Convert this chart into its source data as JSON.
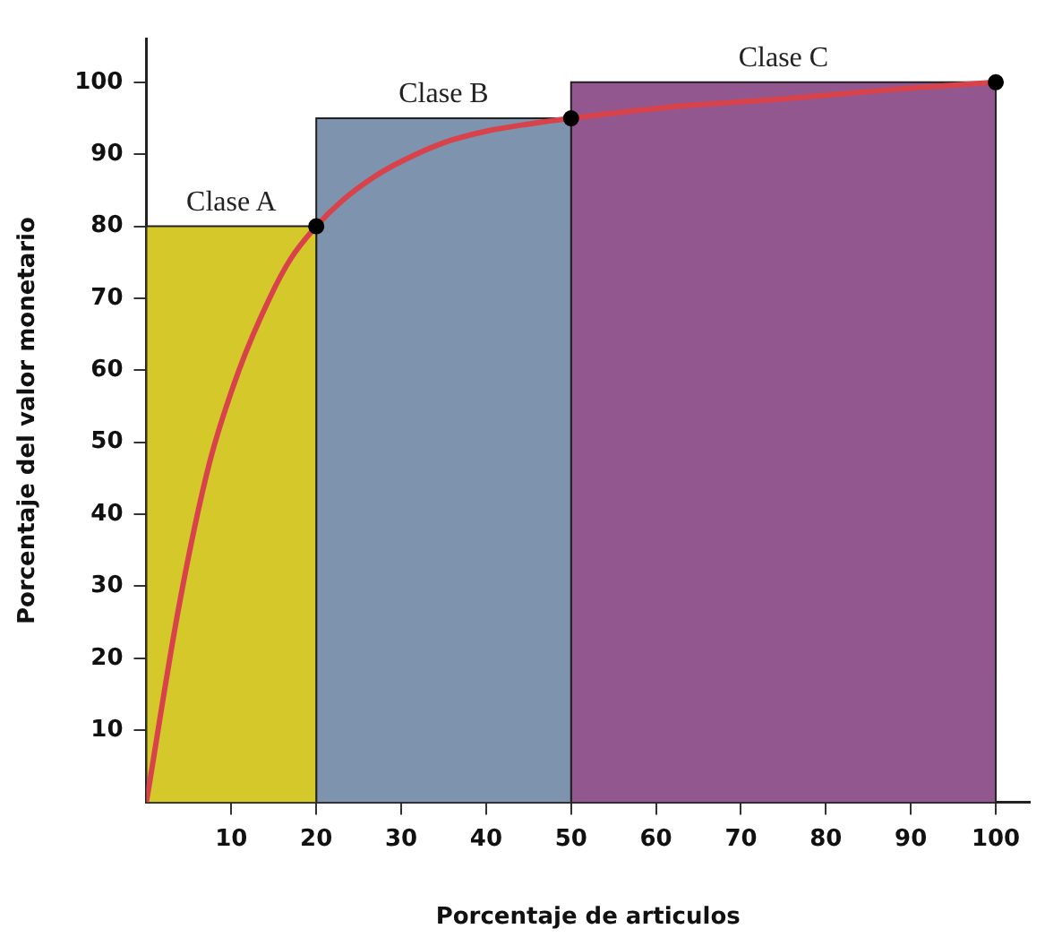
{
  "chart_data": {
    "type": "histogram",
    "xlabel": "Porcentaje de articulos",
    "ylabel": "Porcentaje del valor monetario",
    "bins": [
      0,
      20,
      50,
      100
    ],
    "values": [
      80,
      95,
      100
    ],
    "colors": [
      "#d4c82a",
      "#7d93ae",
      "#935790"
    ],
    "series": [
      {
        "type": "line",
        "color": "#d8434b",
        "marker": "none",
        "x": [
          0,
          3.8,
          7.4,
          10.9,
          14.5,
          17,
          20,
          23,
          27,
          30,
          35,
          40,
          45,
          50,
          62,
          75.2,
          88,
          100
        ],
        "values": [
          0,
          27,
          47,
          60,
          70,
          75.5,
          80,
          83.5,
          87,
          89,
          91.6,
          93.2,
          94.2,
          95,
          96.6,
          97.7,
          99,
          100
        ]
      },
      {
        "type": "scatter",
        "color": "#000000",
        "marker": "circle",
        "x": [
          20,
          50,
          100
        ],
        "values": [
          80,
          95,
          100
        ]
      }
    ],
    "annotations": [
      {
        "text": "Clase A",
        "x": 10,
        "y": 80
      },
      {
        "text": "Clase B",
        "x": 35,
        "y": 95
      },
      {
        "text": "Clase C",
        "x": 75,
        "y": 100
      }
    ],
    "xlim": [
      0,
      104
    ],
    "ylim": [
      0,
      106
    ],
    "xticks": [
      10,
      20,
      30,
      40,
      50,
      60,
      70,
      80,
      90,
      100
    ],
    "yticks": [
      10,
      20,
      30,
      40,
      50,
      60,
      70,
      80,
      90,
      100
    ],
    "grid": false,
    "legend": false
  }
}
